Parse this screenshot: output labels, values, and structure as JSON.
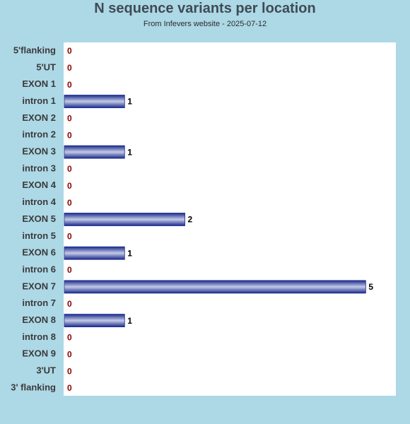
{
  "chart_data": {
    "type": "bar",
    "orientation": "horizontal",
    "title": "N sequence variants per location",
    "subtitle": "From Infevers website - 2025-07-12",
    "categories": [
      "5'flanking",
      "5'UT",
      "EXON 1",
      "intron 1",
      "EXON 2",
      "intron 2",
      "EXON 3",
      "intron 3",
      "EXON 4",
      "intron 4",
      "EXON 5",
      "intron 5",
      "EXON 6",
      "intron 6",
      "EXON 7",
      "intron 7",
      "EXON 8",
      "intron 8",
      "EXON 9",
      "3'UT",
      "3' flanking"
    ],
    "values": [
      0,
      0,
      0,
      1,
      0,
      0,
      1,
      0,
      0,
      0,
      2,
      0,
      1,
      0,
      5,
      0,
      1,
      0,
      0,
      0,
      0
    ],
    "xlim": [
      0,
      5.5
    ],
    "grid": false,
    "colors": {
      "background": "#add8e6",
      "plot_area": "#ffffff",
      "bar_dark": "#1a2a8c",
      "bar_light": "#c4cbe6",
      "zero_label": "#8b0000",
      "value_label": "#000000"
    }
  }
}
